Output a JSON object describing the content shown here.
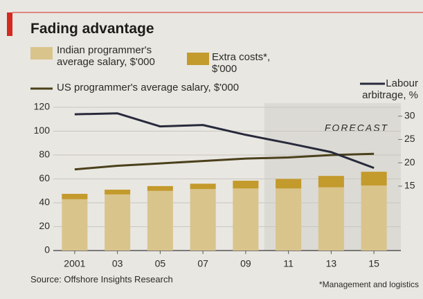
{
  "chart_data": {
    "type": "bar",
    "title": "Fading advantage",
    "source": "Source: Offshore Insights Research",
    "footnote": "*Management and logistics",
    "annotation": "FORECAST",
    "categories": [
      "2001",
      "03",
      "05",
      "07",
      "09",
      "11",
      "13",
      "15"
    ],
    "series": [
      {
        "name": "Indian programmer's average salary, $'000",
        "type": "bar",
        "color": "#d9c48c",
        "values": [
          43,
          47,
          50,
          51.5,
          52,
          52,
          53,
          54.5
        ]
      },
      {
        "name": "Extra costs*, $'000",
        "type": "bar",
        "color": "#c39a2c",
        "values": [
          4.5,
          4,
          4,
          4.5,
          6.5,
          8,
          9.5,
          11.5
        ]
      },
      {
        "name": "US programmer's average salary, $'000",
        "type": "line",
        "color": "#4a401b",
        "values": [
          68,
          71,
          73,
          75,
          77,
          78,
          80,
          81
        ]
      },
      {
        "name": "Labour arbitrage, %",
        "type": "line",
        "axis": "y2",
        "color": "#272a3b",
        "values": [
          30.4,
          30.6,
          27.8,
          28.1,
          26,
          24.2,
          22.3,
          18.9
        ]
      }
    ],
    "ylim": [
      0,
      120
    ],
    "yticks": [
      0,
      20,
      40,
      60,
      80,
      100,
      120
    ],
    "y2lim": [
      1.2,
      31.9
    ],
    "y2ticks": [
      15,
      20,
      25,
      30
    ],
    "grid": true
  }
}
